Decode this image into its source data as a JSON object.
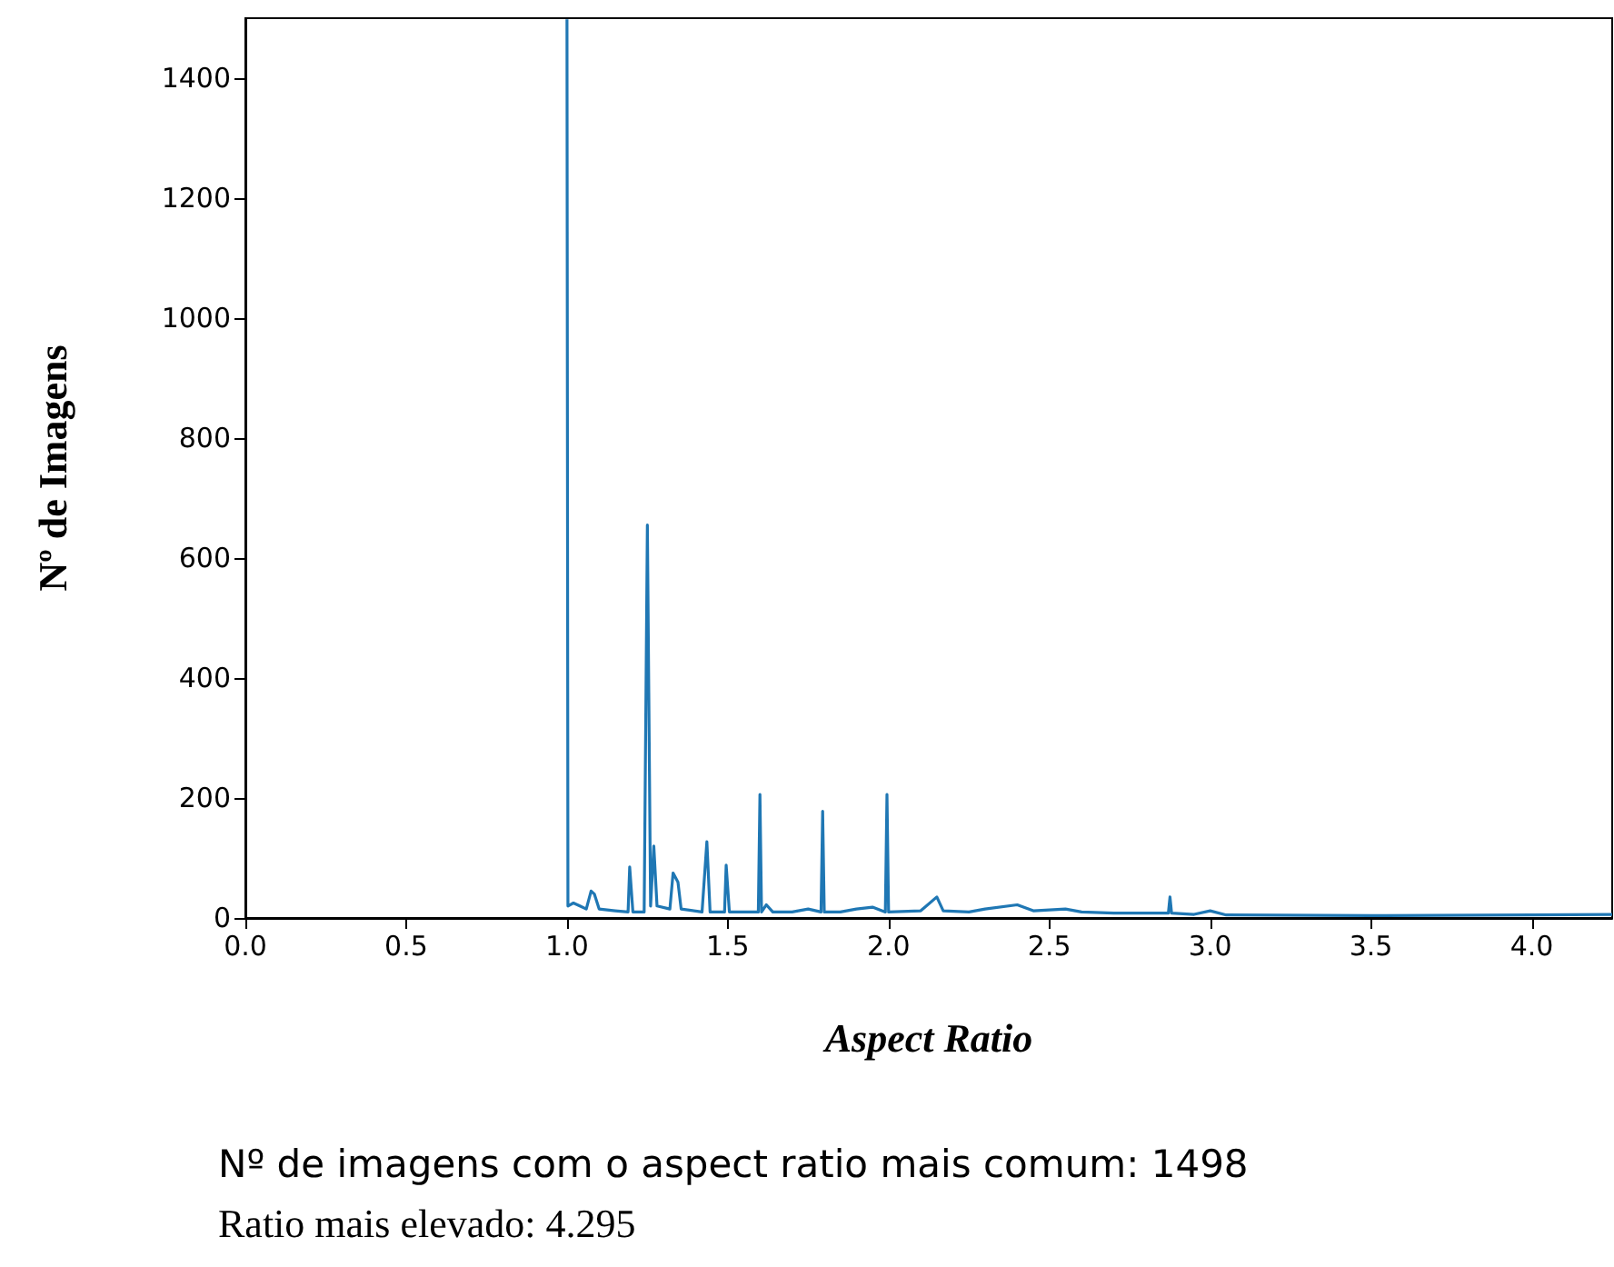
{
  "chart_data": {
    "type": "line",
    "xlabel": "Aspect Ratio",
    "ylabel": "Nº de Imagens",
    "xlim": [
      0,
      4.25
    ],
    "ylim": [
      0,
      1500
    ],
    "xticks": [
      {
        "value": 0,
        "label": "0.0"
      },
      {
        "value": 0.5,
        "label": "0.5"
      },
      {
        "value": 1,
        "label": "1.0"
      },
      {
        "value": 1.5,
        "label": "1.5"
      },
      {
        "value": 2,
        "label": "2.0"
      },
      {
        "value": 2.5,
        "label": "2.5"
      },
      {
        "value": 3,
        "label": "3.0"
      },
      {
        "value": 3.5,
        "label": "3.5"
      },
      {
        "value": 4,
        "label": "4.0"
      }
    ],
    "yticks": [
      0,
      200,
      400,
      600,
      800,
      1000,
      1200,
      1400
    ],
    "grid": false,
    "marker": "none",
    "line_style": "solid",
    "series": [
      {
        "color": "#1f77b4",
        "x": [
          1.0,
          1.003,
          1.02,
          1.04,
          1.06,
          1.075,
          1.085,
          1.1,
          1.15,
          1.19,
          1.195,
          1.205,
          1.24,
          1.25,
          1.26,
          1.27,
          1.28,
          1.32,
          1.33,
          1.345,
          1.355,
          1.42,
          1.435,
          1.445,
          1.49,
          1.495,
          1.505,
          1.55,
          1.595,
          1.6,
          1.605,
          1.62,
          1.64,
          1.7,
          1.75,
          1.79,
          1.795,
          1.8,
          1.85,
          1.9,
          1.95,
          1.99,
          1.995,
          2.0,
          2.1,
          2.15,
          2.17,
          2.25,
          2.3,
          2.4,
          2.45,
          2.55,
          2.6,
          2.7,
          2.8,
          2.87,
          2.875,
          2.88,
          2.95,
          3.0,
          3.05,
          3.5,
          4.0,
          4.25
        ],
        "values": [
          1498,
          20,
          25,
          20,
          15,
          45,
          40,
          15,
          12,
          10,
          85,
          10,
          10,
          655,
          20,
          120,
          20,
          15,
          75,
          60,
          15,
          10,
          127,
          10,
          10,
          88,
          10,
          10,
          10,
          206,
          10,
          22,
          10,
          10,
          15,
          10,
          178,
          10,
          10,
          15,
          18,
          10,
          206,
          10,
          12,
          35,
          12,
          10,
          15,
          22,
          12,
          15,
          10,
          8,
          8,
          8,
          35,
          8,
          6,
          12,
          5,
          4,
          5,
          6
        ]
      }
    ],
    "annotations": [
      "Nº de imagens com o aspect ratio mais comum: 1498",
      "Ratio mais elevado: 4.295"
    ]
  }
}
